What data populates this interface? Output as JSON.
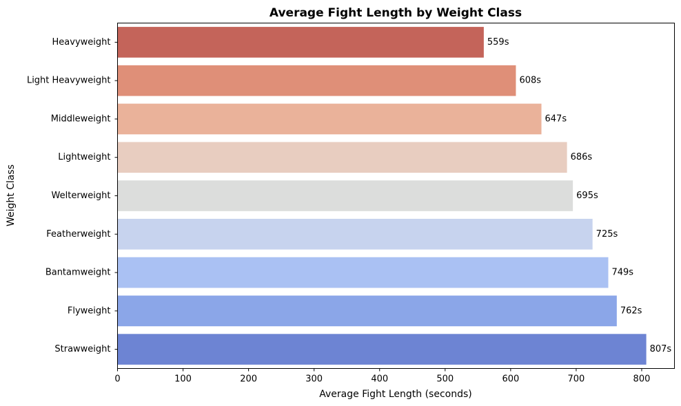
{
  "chart_data": {
    "type": "bar",
    "orientation": "horizontal",
    "title": "Average Fight Length by Weight Class",
    "xlabel": "Average Fight Length (seconds)",
    "ylabel": "Weight Class",
    "xlim": [
      0,
      850
    ],
    "xticks": [
      "0",
      "100",
      "200",
      "300",
      "400",
      "500",
      "600",
      "700",
      "800"
    ],
    "grid": false,
    "categories": [
      "Heavyweight",
      "Light Heavyweight",
      "Middleweight",
      "Lightweight",
      "Welterweight",
      "Featherweight",
      "Bantamweight",
      "Flyweight",
      "Strawweight"
    ],
    "values": [
      559,
      608,
      647,
      686,
      695,
      725,
      749,
      762,
      807
    ],
    "value_labels": [
      "559s",
      "608s",
      "647s",
      "686s",
      "695s",
      "725s",
      "749s",
      "762s",
      "807s"
    ],
    "colors": [
      "#c4645a",
      "#df8f78",
      "#eab29a",
      "#e8cdc0",
      "#dcdddc",
      "#c7d3ee",
      "#aac1f3",
      "#8ba6e8",
      "#6d84d3"
    ]
  }
}
